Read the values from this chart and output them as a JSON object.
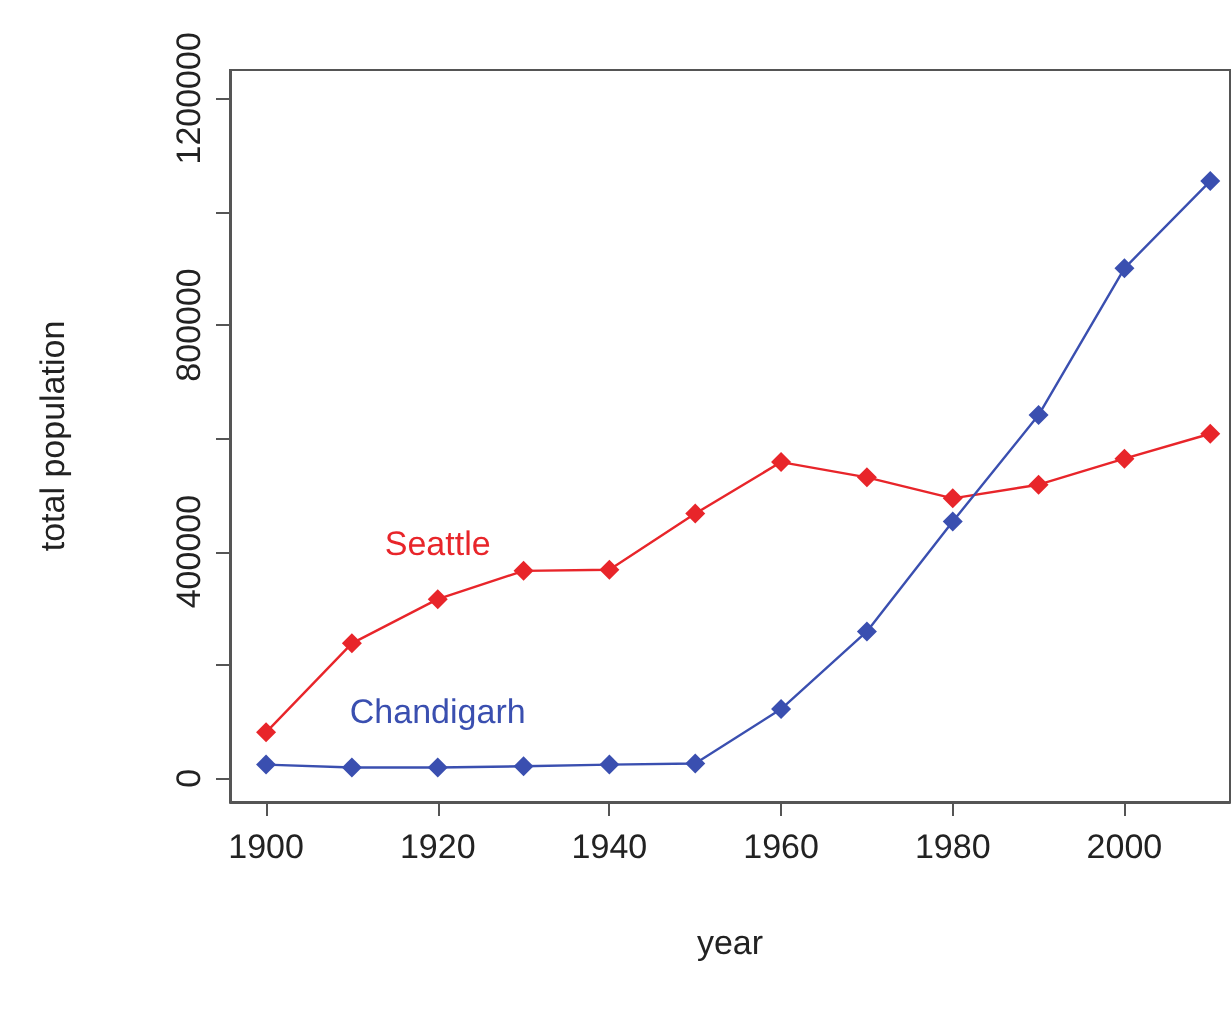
{
  "chart_data": {
    "type": "line",
    "xlabel": "year",
    "ylabel": "total population",
    "x": [
      1900,
      1910,
      1920,
      1930,
      1940,
      1950,
      1960,
      1970,
      1980,
      1990,
      2000,
      2010
    ],
    "series": [
      {
        "name": "Seattle",
        "color": "#e8252a",
        "values": [
          81000,
          238000,
          316000,
          366000,
          368000,
          467000,
          558000,
          531000,
          494000,
          518000,
          564000,
          608000
        ]
      },
      {
        "name": "Chandigarh",
        "color": "#3a4fb0",
        "values": [
          24000,
          19000,
          19000,
          21000,
          24000,
          26000,
          122000,
          259000,
          453000,
          641000,
          900000,
          1054000
        ]
      }
    ],
    "xlim": [
      1895.8,
      2012.3
    ],
    "xticks": [
      1900,
      1920,
      1940,
      1960,
      1980,
      2000
    ],
    "ylim": [
      -42000,
      1250000
    ],
    "yticks": [
      0,
      {
        "value": 200000,
        "label": null
      },
      400000,
      {
        "value": 600000,
        "label": null
      },
      800000,
      {
        "value": 1000000,
        "label": null
      },
      1200000
    ],
    "marker": "diamond",
    "line_style": "solid",
    "grid": false,
    "legend": false
  }
}
